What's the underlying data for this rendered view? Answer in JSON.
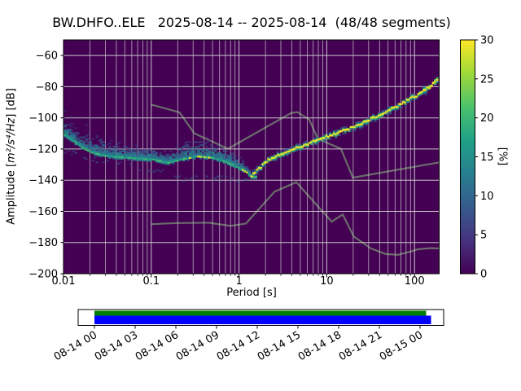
{
  "title": "BW.DHFO..ELE   2025-08-14 -- 2025-08-14  (48/48 segments)",
  "colors": {
    "background": "#ffffff",
    "plot_bg": "#440154",
    "grid": "#cdcdcd",
    "noise_model_line": "#6b6b6b",
    "frame": "#000000",
    "timeline_green": "#008000",
    "timeline_blue": "#0000ff"
  },
  "chart_data": {
    "type": "heatmap",
    "title": "BW.DHFO..ELE   2025-08-14 -- 2025-08-14  (48/48 segments)",
    "station": "BW.DHFO..ELE",
    "date_range": "2025-08-14 -- 2025-08-14",
    "segments": "48/48",
    "xlabel": "Period [s]",
    "ylabel": "Amplitude [m²/s⁴/Hz] [dB]",
    "ylabel_parts": {
      "prefix": "Amplitude [",
      "math": "m²/s⁴/Hz",
      "suffix": "] [dB]"
    },
    "xscale": "log",
    "xlim": [
      0.01,
      190
    ],
    "ylim": [
      -200,
      -50
    ],
    "grid": true,
    "xtick_values": [
      0.01,
      0.1,
      1,
      10,
      100
    ],
    "xtick_labels": [
      "0.01",
      "0.1",
      "1",
      "10",
      "100"
    ],
    "ytick_values": [
      -60,
      -80,
      -100,
      -120,
      -140,
      -160,
      -180,
      -200
    ],
    "ytick_labels": [
      "−60",
      "−80",
      "−100",
      "−120",
      "−140",
      "−160",
      "−180",
      "−200"
    ],
    "colorbar": {
      "label": "[%]",
      "range": [
        0,
        30
      ],
      "tick_values": [
        0,
        5,
        10,
        15,
        20,
        25,
        30
      ],
      "tick_labels": [
        "0",
        "5",
        "10",
        "15",
        "20",
        "25",
        "30"
      ],
      "colormap": "viridis"
    },
    "noise_models": {
      "high": [
        [
          0.1,
          -91.5
        ],
        [
          0.21,
          -96.5
        ],
        [
          0.31,
          -110.0
        ],
        [
          0.75,
          -119.8
        ],
        [
          3.9,
          -97.0
        ],
        [
          4.6,
          -96.3
        ],
        [
          6.3,
          -101.0
        ],
        [
          7.9,
          -113.5
        ],
        [
          14.5,
          -119.8
        ],
        [
          19.8,
          -138.4
        ],
        [
          190,
          -128.6
        ]
      ],
      "low": [
        [
          0.1,
          -168.2
        ],
        [
          0.2,
          -167.5
        ],
        [
          0.45,
          -167.3
        ],
        [
          0.8,
          -169.3
        ],
        [
          1.2,
          -167.8
        ],
        [
          2.55,
          -147.3
        ],
        [
          4.5,
          -141.3
        ],
        [
          7.75,
          -156.2
        ],
        [
          11.4,
          -166.6
        ],
        [
          15.2,
          -162.0
        ],
        [
          20.3,
          -176.1
        ],
        [
          32,
          -183.9
        ],
        [
          47,
          -187.4
        ],
        [
          65,
          -187.9
        ],
        [
          90,
          -185.8
        ],
        [
          110,
          -184.3
        ],
        [
          150,
          -183.6
        ],
        [
          190,
          -183.8
        ]
      ]
    },
    "psd_mode_line": [
      [
        1.35,
        -137.5
      ],
      [
        2.0,
        -127.8
      ],
      [
        2.6,
        -124.5
      ],
      [
        4.1,
        -119.7
      ],
      [
        6.5,
        -115.8
      ],
      [
        8.3,
        -113.5
      ],
      [
        12,
        -110.2
      ],
      [
        17,
        -107.3
      ],
      [
        25,
        -103.3
      ],
      [
        34.6,
        -99.6
      ],
      [
        50,
        -95.3
      ],
      [
        70,
        -90.8
      ],
      [
        100,
        -86.0
      ],
      [
        140,
        -80.5
      ],
      [
        180,
        -75.5
      ]
    ],
    "psd_cloud": {
      "ridge": [
        [
          0.0102,
          -110.5
        ],
        [
          0.013,
          -115
        ],
        [
          0.016,
          -118.5
        ],
        [
          0.02,
          -121.5
        ],
        [
          0.03,
          -124
        ],
        [
          0.05,
          -125
        ],
        [
          0.08,
          -125.8
        ],
        [
          0.105,
          -126.2
        ],
        [
          0.15,
          -128.3
        ],
        [
          0.22,
          -126
        ],
        [
          0.33,
          -124.2
        ],
        [
          0.5,
          -125.2
        ],
        [
          0.7,
          -127.8
        ],
        [
          1.0,
          -131.8
        ],
        [
          1.2,
          -134.5
        ],
        [
          1.35,
          -137.3
        ]
      ],
      "upper": [
        [
          0.0102,
          -99
        ],
        [
          0.02,
          -106
        ],
        [
          0.04,
          -112
        ],
        [
          0.08,
          -117
        ],
        [
          0.15,
          -122
        ],
        [
          0.3,
          -120.8
        ],
        [
          0.5,
          -121.5
        ],
        [
          0.8,
          -125
        ],
        [
          1.1,
          -130
        ],
        [
          1.4,
          -135.5
        ]
      ],
      "lower": [
        [
          0.0102,
          -122
        ],
        [
          0.02,
          -128
        ],
        [
          0.04,
          -131.5
        ],
        [
          0.08,
          -134
        ],
        [
          0.12,
          -136
        ],
        [
          0.2,
          -140.3
        ],
        [
          0.5,
          -140.7
        ],
        [
          1.0,
          -140.7
        ],
        [
          1.3,
          -140.3
        ],
        [
          1.45,
          -139
        ]
      ],
      "probability_peak_percent": 30
    },
    "timeline": {
      "tick_labels": [
        "08-14 00",
        "08-14 03",
        "08-14 06",
        "08-14 09",
        "08-14 12",
        "08-14 15",
        "08-14 18",
        "08-14 21",
        "08-15 00"
      ]
    }
  }
}
